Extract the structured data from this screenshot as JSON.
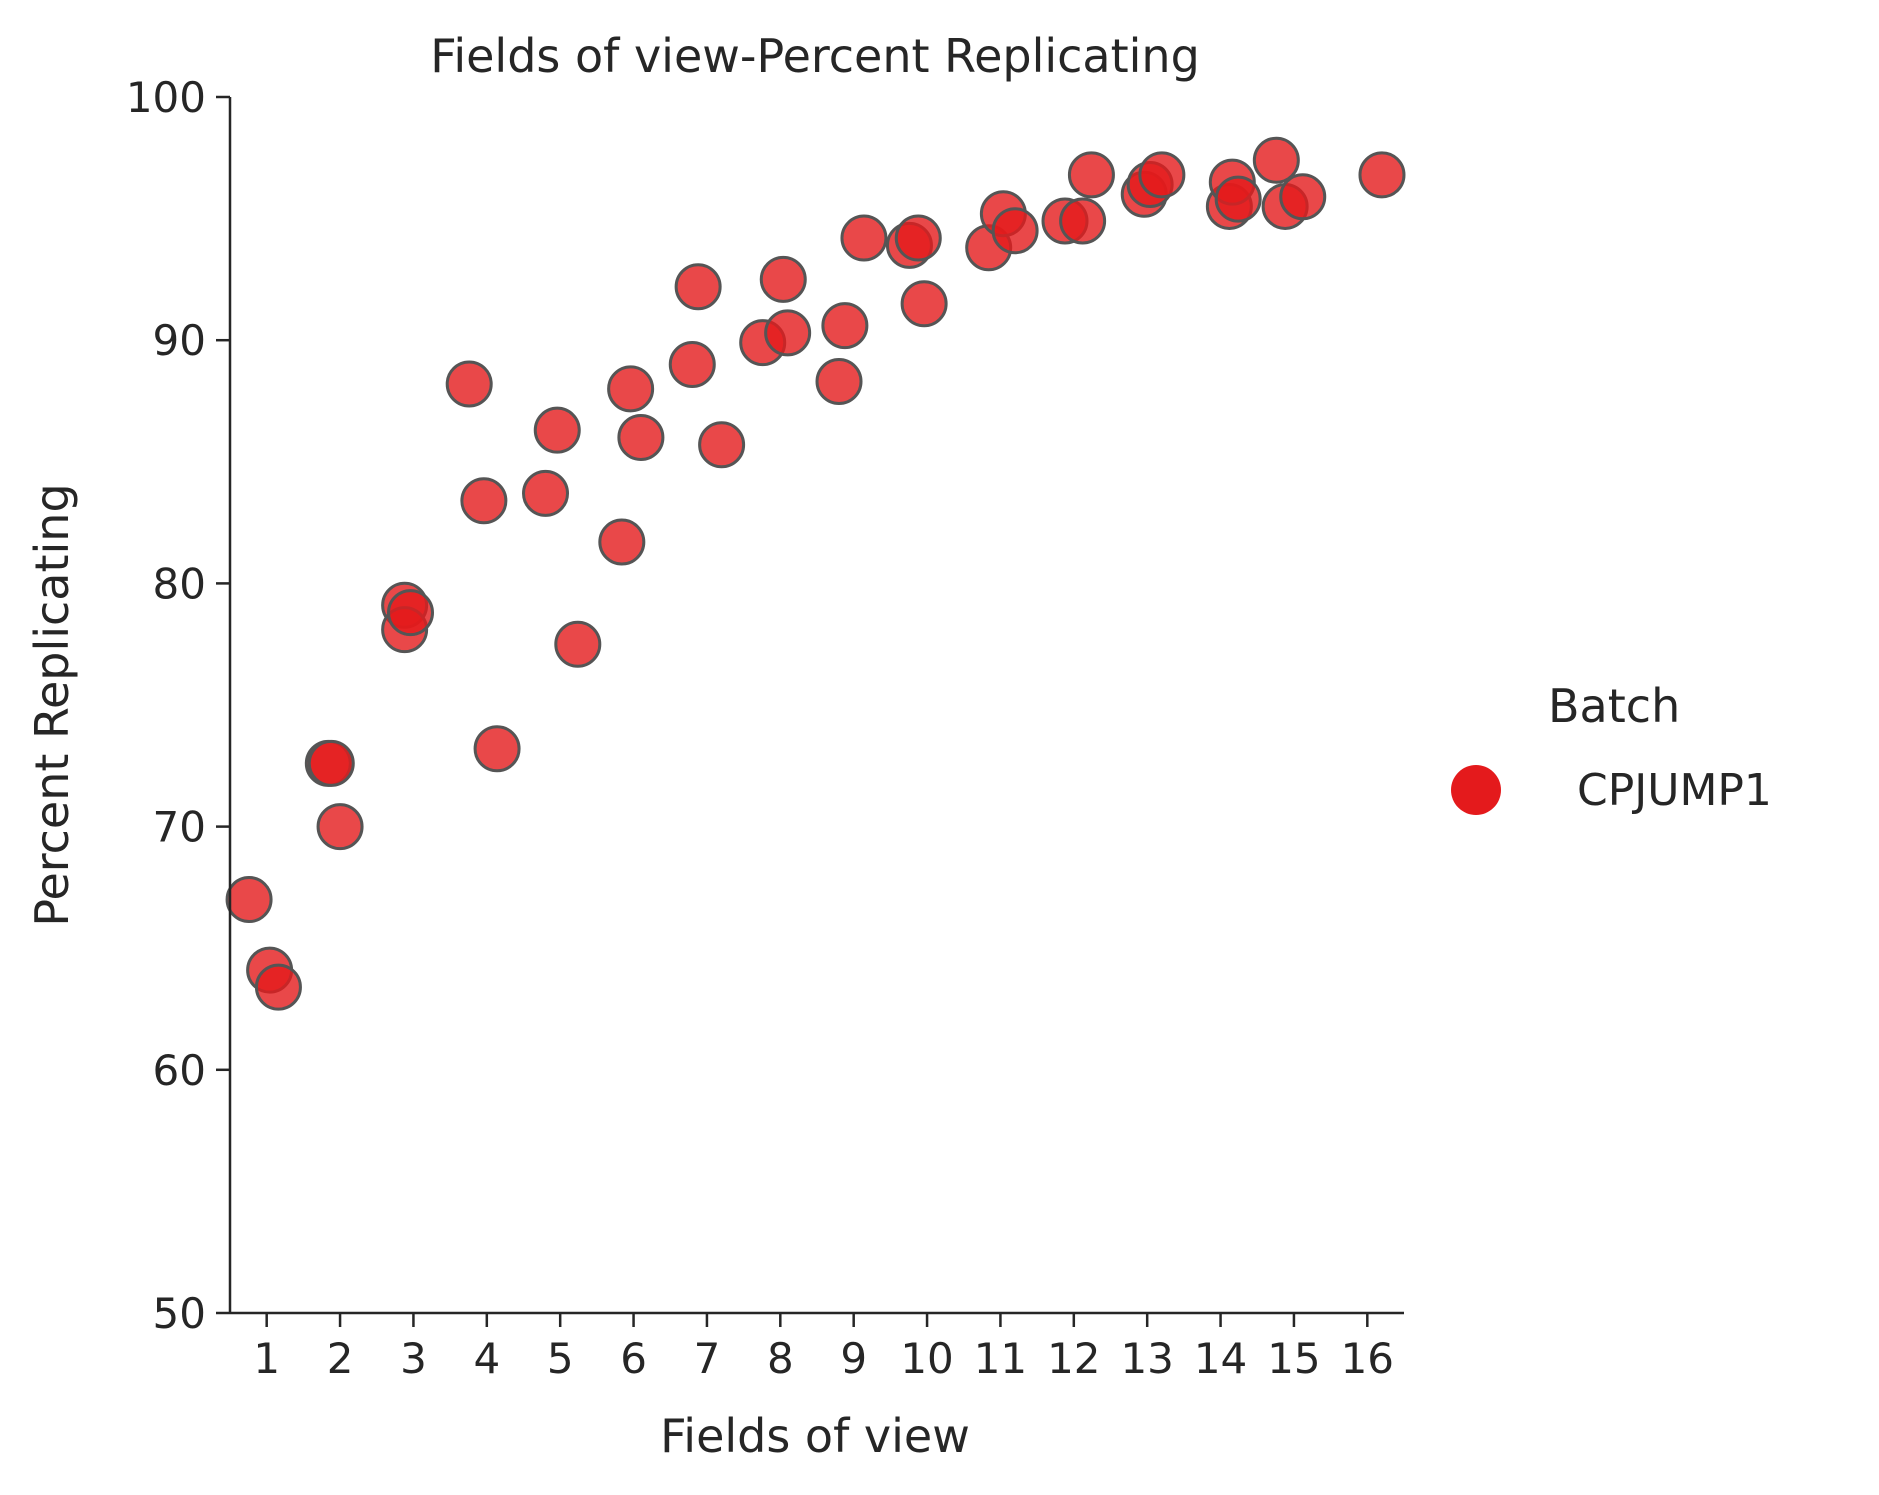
{
  "chart_data": {
    "type": "scatter",
    "title": "Fields of view-Percent Replicating",
    "xlabel": "Fields of view",
    "ylabel": "Percent Replicating",
    "xlim": [
      0.5,
      16.5
    ],
    "ylim": [
      50,
      100
    ],
    "xticks": [
      1,
      2,
      3,
      4,
      5,
      6,
      7,
      8,
      9,
      10,
      11,
      12,
      13,
      14,
      15,
      16
    ],
    "yticks": [
      50,
      60,
      70,
      80,
      90,
      100
    ],
    "grid": false,
    "legend": {
      "title": "Batch",
      "placement": "right"
    },
    "series": [
      {
        "name": "CPJUMP1",
        "color": "#e41a1c",
        "points": [
          [
            0.76,
            67.0
          ],
          [
            1.04,
            64.1
          ],
          [
            1.16,
            63.4
          ],
          [
            1.84,
            72.6
          ],
          [
            1.88,
            72.6
          ],
          [
            2.0,
            70.0
          ],
          [
            2.88,
            79.1
          ],
          [
            2.88,
            78.1
          ],
          [
            2.96,
            78.8
          ],
          [
            3.76,
            88.2
          ],
          [
            3.96,
            83.4
          ],
          [
            4.14,
            73.2
          ],
          [
            4.8,
            83.7
          ],
          [
            4.96,
            86.3
          ],
          [
            5.24,
            77.5
          ],
          [
            5.84,
            81.7
          ],
          [
            5.96,
            88.0
          ],
          [
            6.1,
            86.0
          ],
          [
            6.8,
            89.0
          ],
          [
            6.88,
            92.2
          ],
          [
            7.2,
            85.7
          ],
          [
            7.76,
            89.9
          ],
          [
            8.04,
            92.5
          ],
          [
            8.1,
            90.3
          ],
          [
            8.8,
            88.3
          ],
          [
            8.88,
            90.6
          ],
          [
            9.14,
            94.2
          ],
          [
            9.76,
            93.9
          ],
          [
            9.88,
            94.2
          ],
          [
            9.96,
            91.5
          ],
          [
            10.84,
            93.8
          ],
          [
            11.04,
            95.2
          ],
          [
            11.2,
            94.5
          ],
          [
            11.88,
            94.9
          ],
          [
            12.12,
            94.9
          ],
          [
            12.24,
            96.8
          ],
          [
            12.96,
            96.0
          ],
          [
            13.04,
            96.4
          ],
          [
            13.2,
            96.8
          ],
          [
            14.12,
            95.5
          ],
          [
            14.16,
            96.5
          ],
          [
            14.24,
            95.8
          ],
          [
            14.76,
            97.4
          ],
          [
            14.88,
            95.5
          ],
          [
            15.12,
            95.9
          ],
          [
            16.2,
            96.8
          ]
        ]
      }
    ]
  }
}
